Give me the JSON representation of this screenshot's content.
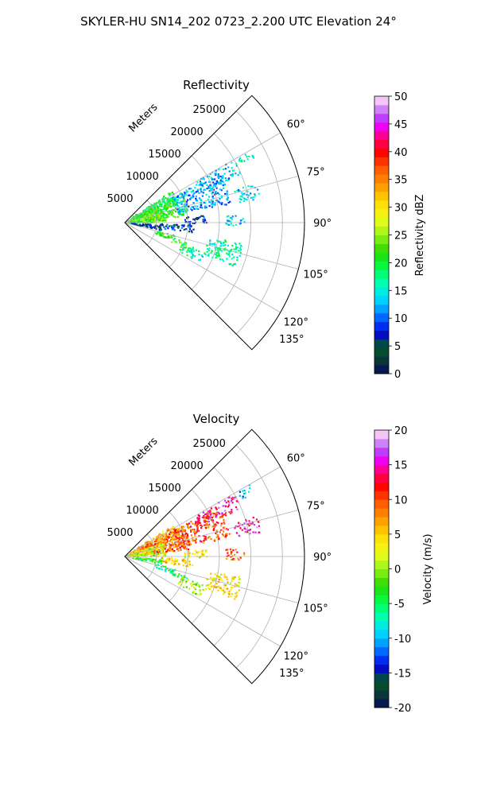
{
  "figure": {
    "suptitle": "SKYLER-HU  SN14_202  0723_2.200 UTC Elevation 24°"
  },
  "chart_data": [
    {
      "type": "heatmap",
      "subtype": "polar-sector",
      "title": "Reflectivity",
      "range_axis_label": "Meters",
      "range_ticks": [
        5000,
        10000,
        15000,
        20000,
        25000
      ],
      "rlim": [
        0,
        28500
      ],
      "theta_ticks_deg": [
        60,
        75,
        90,
        105,
        120,
        135
      ],
      "theta_tick_labels": [
        "60°",
        "75°",
        "90°",
        "105°",
        "120°",
        "135°"
      ],
      "theta_range_deg": [
        45,
        135
      ],
      "grid": true,
      "colorbar": {
        "label": "Reflectivity dBZ",
        "vmin": 0,
        "vmax": 50,
        "ticks": [
          0,
          5,
          10,
          15,
          20,
          25,
          30,
          35,
          40,
          45,
          50
        ]
      },
      "echo_regions": [
        {
          "az_deg": [
            56,
            72
          ],
          "range_m": [
            1000,
            9000
          ],
          "value": 19
        },
        {
          "az_deg": [
            62,
            84
          ],
          "range_m": [
            3000,
            10500
          ],
          "value": 21
        },
        {
          "az_deg": [
            70,
            90
          ],
          "range_m": [
            500,
            6500
          ],
          "value": 23
        },
        {
          "az_deg": [
            62,
            80
          ],
          "range_m": [
            8500,
            17000
          ],
          "value": 12
        },
        {
          "az_deg": [
            60,
            68
          ],
          "range_m": [
            13000,
            20000
          ],
          "value": 13
        },
        {
          "az_deg": [
            60,
            64
          ],
          "range_m": [
            20500,
            23000
          ],
          "value": 16
        },
        {
          "az_deg": [
            73,
            80
          ],
          "range_m": [
            18000,
            22000
          ],
          "value": 14
        },
        {
          "az_deg": [
            85,
            91
          ],
          "range_m": [
            9500,
            13000
          ],
          "value": 6
        },
        {
          "az_deg": [
            92,
            99
          ],
          "range_m": [
            5500,
            11000
          ],
          "value": 8
        },
        {
          "az_deg": [
            94,
            102
          ],
          "range_m": [
            1000,
            6000
          ],
          "value": 6
        },
        {
          "az_deg": [
            104,
            110
          ],
          "range_m": [
            5000,
            8500
          ],
          "value": 21
        },
        {
          "az_deg": [
            108,
            113
          ],
          "range_m": [
            8000,
            10500
          ],
          "value": 22
        },
        {
          "az_deg": [
            100,
            112
          ],
          "range_m": [
            13500,
            19000
          ],
          "value": 17
        },
        {
          "az_deg": [
            110,
            118
          ],
          "range_m": [
            9500,
            13500
          ],
          "value": 16
        },
        {
          "az_deg": [
            86,
            92
          ],
          "range_m": [
            16000,
            19000
          ],
          "value": 14
        }
      ]
    },
    {
      "type": "heatmap",
      "subtype": "polar-sector",
      "title": "Velocity",
      "range_axis_label": "Meters",
      "range_ticks": [
        5000,
        10000,
        15000,
        20000,
        25000
      ],
      "rlim": [
        0,
        28500
      ],
      "theta_ticks_deg": [
        60,
        75,
        90,
        105,
        120,
        135
      ],
      "theta_tick_labels": [
        "60°",
        "75°",
        "90°",
        "105°",
        "120°",
        "135°"
      ],
      "theta_range_deg": [
        45,
        135
      ],
      "grid": true,
      "colorbar": {
        "label": "Velocity (m/s)",
        "vmin": -20,
        "vmax": 20,
        "ticks": [
          -20,
          -15,
          -10,
          -5,
          0,
          5,
          10,
          15,
          20
        ]
      },
      "echo_regions": [
        {
          "az_deg": [
            56,
            72
          ],
          "range_m": [
            1000,
            9000
          ],
          "value": 6
        },
        {
          "az_deg": [
            62,
            84
          ],
          "range_m": [
            3000,
            10500
          ],
          "value": 9
        },
        {
          "az_deg": [
            70,
            90
          ],
          "range_m": [
            500,
            6500
          ],
          "value": 2
        },
        {
          "az_deg": [
            62,
            80
          ],
          "range_m": [
            8500,
            17000
          ],
          "value": 10
        },
        {
          "az_deg": [
            60,
            68
          ],
          "range_m": [
            13000,
            20000
          ],
          "value": 14
        },
        {
          "az_deg": [
            60,
            64
          ],
          "range_m": [
            20500,
            23000
          ],
          "value": -11
        },
        {
          "az_deg": [
            73,
            80
          ],
          "range_m": [
            18000,
            22000
          ],
          "value": 15
        },
        {
          "az_deg": [
            85,
            91
          ],
          "range_m": [
            9500,
            13000
          ],
          "value": 4
        },
        {
          "az_deg": [
            92,
            99
          ],
          "range_m": [
            5500,
            11000
          ],
          "value": 5
        },
        {
          "az_deg": [
            94,
            102
          ],
          "range_m": [
            1000,
            6000
          ],
          "value": -3
        },
        {
          "az_deg": [
            104,
            110
          ],
          "range_m": [
            5000,
            8500
          ],
          "value": -5
        },
        {
          "az_deg": [
            108,
            113
          ],
          "range_m": [
            8000,
            10500
          ],
          "value": -4
        },
        {
          "az_deg": [
            100,
            112
          ],
          "range_m": [
            13500,
            19000
          ],
          "value": 4
        },
        {
          "az_deg": [
            110,
            118
          ],
          "range_m": [
            9500,
            13500
          ],
          "value": 1
        },
        {
          "az_deg": [
            86,
            92
          ],
          "range_m": [
            16000,
            19000
          ],
          "value": 10
        }
      ]
    }
  ]
}
